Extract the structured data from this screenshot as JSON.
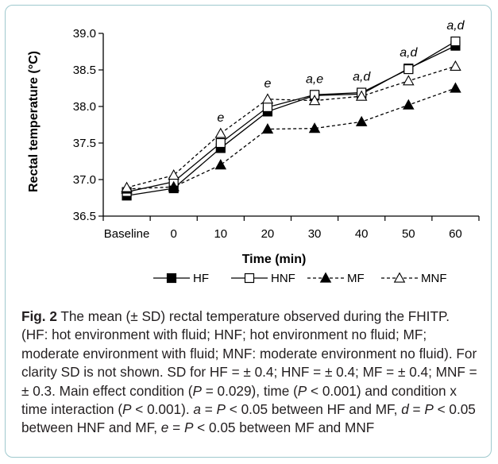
{
  "chart_data": {
    "type": "line",
    "categories": [
      "Baseline",
      "0",
      "10",
      "20",
      "30",
      "40",
      "50",
      "60"
    ],
    "xlabel": "Time (min)",
    "ylabel": "Rectal temperature (°C)",
    "ylim": [
      36.5,
      39.0
    ],
    "yticks": [
      "36.5",
      "37.0",
      "37.5",
      "38.0",
      "38.5",
      "39.0"
    ],
    "grid": false,
    "legend_position": "bottom",
    "series": [
      {
        "name": "HF",
        "values": [
          36.78,
          36.88,
          37.43,
          37.93,
          38.15,
          38.17,
          38.52,
          38.83
        ],
        "marker": "filled-square",
        "line": "solid"
      },
      {
        "name": "HNF",
        "values": [
          36.83,
          36.97,
          37.5,
          37.99,
          38.16,
          38.19,
          38.51,
          38.89
        ],
        "marker": "open-square",
        "line": "solid"
      },
      {
        "name": "MF",
        "values": [
          36.87,
          36.9,
          37.2,
          37.69,
          37.7,
          37.79,
          38.02,
          38.25
        ],
        "marker": "filled-triangle",
        "line": "dashed"
      },
      {
        "name": "MNF",
        "values": [
          36.89,
          37.06,
          37.63,
          38.1,
          38.08,
          38.14,
          38.35,
          38.55
        ],
        "marker": "open-triangle",
        "line": "dashed"
      }
    ],
    "annotations": [
      {
        "category": "10",
        "text": "e"
      },
      {
        "category": "20",
        "text": "e"
      },
      {
        "category": "30",
        "text": "a,e"
      },
      {
        "category": "40",
        "text": "a,d"
      },
      {
        "category": "50",
        "text": "a,d"
      },
      {
        "category": "60",
        "text": "a,d"
      }
    ]
  },
  "caption": {
    "label": "Fig. 2",
    "segments": [
      {
        "text": " The mean (± SD) rectal temperature observed during the FHITP. (HF: hot environment with fluid; HNF; hot environment no fluid; MF; moderate environment with fluid; MNF: moderate environment no fluid). For clarity SD is not shown. SD for HF = ± 0.4; HNF = ± 0.4; MF = ± 0.4; MNF = ± 0.3. Main effect condition (",
        "italic": false
      },
      {
        "text": "P",
        "italic": true
      },
      {
        "text": " = 0.029), time (",
        "italic": false
      },
      {
        "text": "P",
        "italic": true
      },
      {
        "text": " < 0.001) and condition x time interaction (",
        "italic": false
      },
      {
        "text": "P",
        "italic": true
      },
      {
        "text": " < 0.001). ",
        "italic": false
      },
      {
        "text": "a",
        "italic": true
      },
      {
        "text": " = ",
        "italic": false
      },
      {
        "text": "P",
        "italic": true
      },
      {
        "text": " < 0.05 between HF and MF, ",
        "italic": false
      },
      {
        "text": "d",
        "italic": true
      },
      {
        "text": " = ",
        "italic": false
      },
      {
        "text": "P",
        "italic": true
      },
      {
        "text": " < 0.05 between HNF and MF, ",
        "italic": false
      },
      {
        "text": "e",
        "italic": true
      },
      {
        "text": " = ",
        "italic": false
      },
      {
        "text": "P",
        "italic": true
      },
      {
        "text": " < 0.05 between MF and MNF",
        "italic": false
      }
    ]
  }
}
